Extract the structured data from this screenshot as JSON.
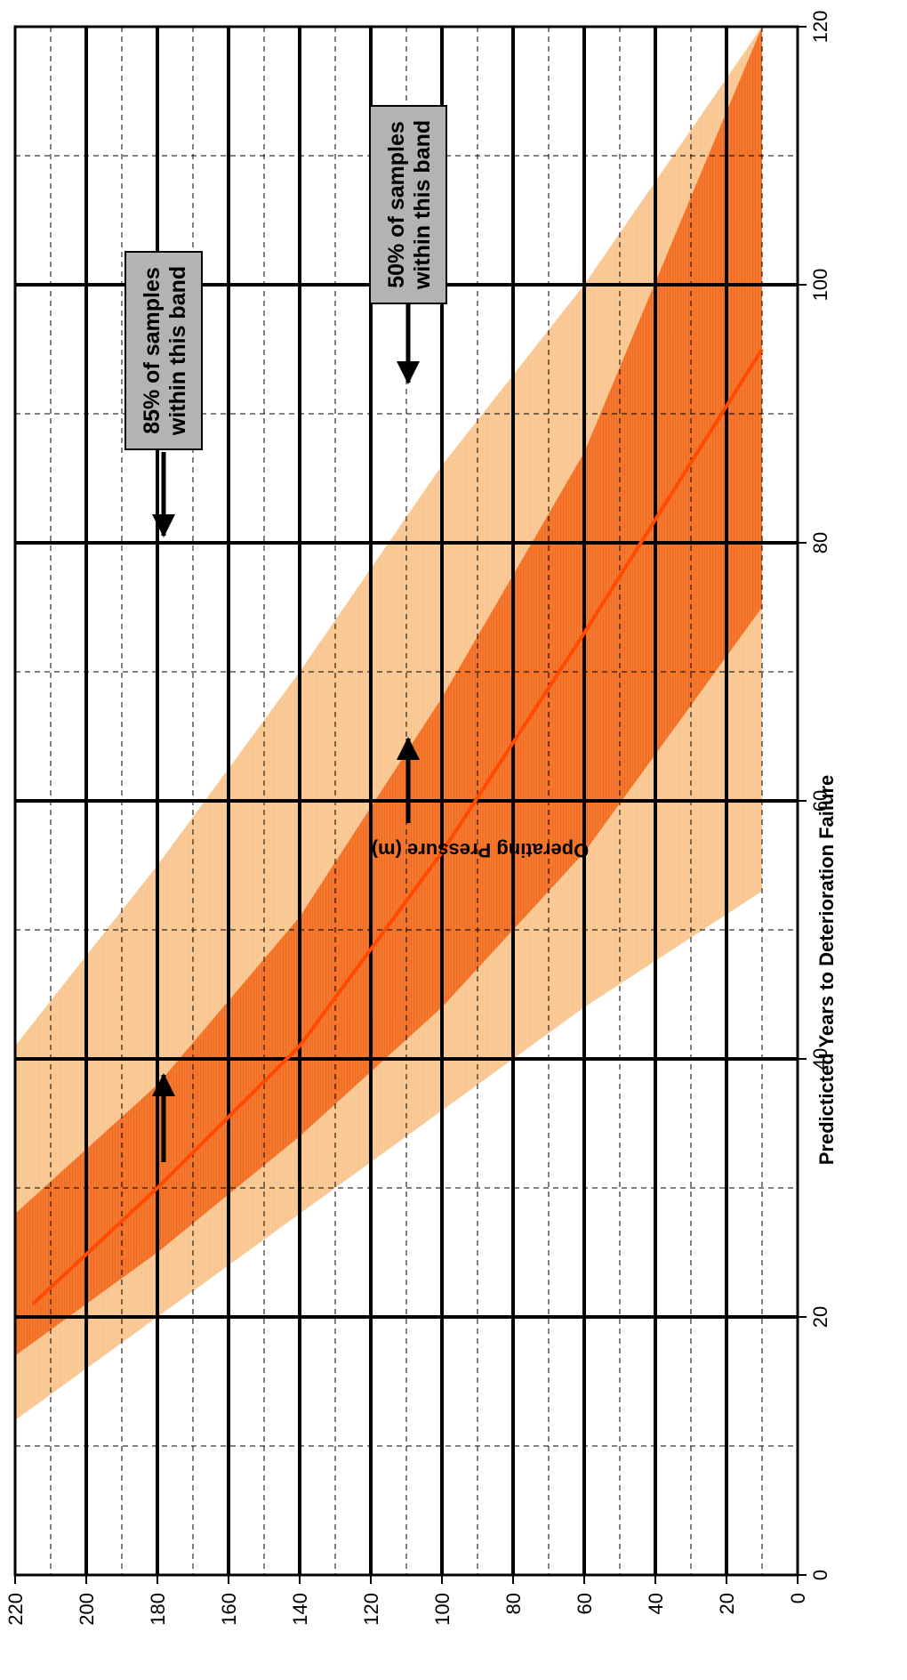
{
  "chart_data": {
    "type": "area",
    "orientation": "rotated-90-clockwise",
    "title": "",
    "xlabel": "Predicticted Years to Deterioration Failure",
    "ylabel": "Operating Pressure (m)",
    "xlim": [
      0,
      120
    ],
    "ylim": [
      0,
      220
    ],
    "x_ticks": [
      "0",
      "20",
      "40",
      "60",
      "80",
      "100",
      "120"
    ],
    "y_ticks": [
      "0",
      "20",
      "40",
      "60",
      "80",
      "100",
      "120",
      "140",
      "160",
      "180",
      "200",
      "220"
    ],
    "grid": {
      "major": true,
      "minor_dashed": true
    },
    "bands": [
      {
        "label": "85% of samples within this band",
        "color": "#f9c48c",
        "lower": {
          "pressure": [
            220,
            180,
            140,
            100,
            60,
            10
          ],
          "years": [
            12,
            20,
            28,
            36,
            44,
            53
          ]
        },
        "upper": {
          "pressure": [
            220,
            180,
            140,
            100,
            60,
            10
          ],
          "years": [
            41,
            55,
            70,
            86,
            100,
            120
          ]
        }
      },
      {
        "label": "50% of samples within this band",
        "color": "#f26a1b",
        "lower": {
          "pressure": [
            220,
            180,
            140,
            100,
            60,
            10
          ],
          "years": [
            17,
            25,
            34,
            44,
            56,
            75
          ]
        },
        "upper": {
          "pressure": [
            220,
            180,
            140,
            100,
            60,
            10
          ],
          "years": [
            28,
            38,
            51,
            68,
            87,
            120
          ]
        }
      }
    ],
    "series": [
      {
        "color": "#ff4a00",
        "pressure": [
          215,
          180,
          140,
          100,
          60,
          10
        ],
        "years": [
          21,
          30,
          41,
          56,
          73,
          95
        ]
      }
    ],
    "annotations": [
      {
        "text_lines": [
          "85% of samples",
          "within this band"
        ],
        "box_color": "#b3b3b3"
      },
      {
        "text_lines": [
          "50% of samples",
          "within this band"
        ],
        "box_color": "#b3b3b3"
      }
    ]
  }
}
